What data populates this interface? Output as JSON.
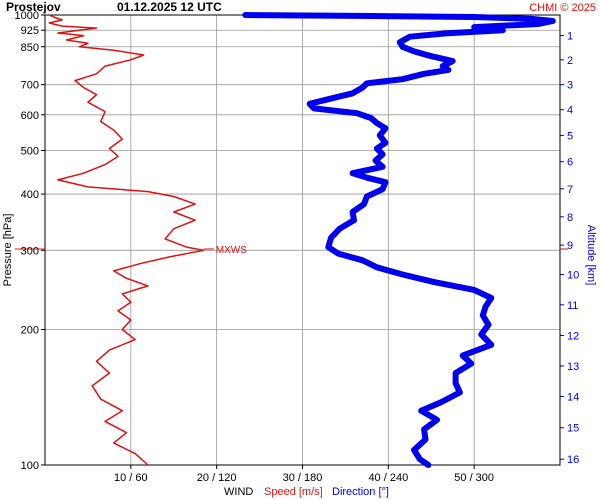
{
  "header": {
    "station": "Prostejov",
    "datetime": "01.12.2025 12 UTC",
    "copyright": "CHMI © 2025"
  },
  "colors": {
    "speed": "#dd1111",
    "direction": "#0000ee",
    "grid": "#999999",
    "axis": "#000000"
  },
  "chart_data": {
    "type": "line",
    "y_axis": {
      "label": "Pressure [hPa]",
      "scale": "log",
      "inverted": true,
      "range": [
        1000,
        100
      ],
      "ticks": [
        1000,
        925,
        850,
        700,
        600,
        500,
        400,
        300,
        200,
        100
      ],
      "tick_labels": [
        "1000",
        "925",
        "850",
        "700",
        "600",
        "500",
        "400",
        "300",
        "200",
        "100"
      ]
    },
    "y2_axis": {
      "label": "Altitude [km]",
      "ticks": [
        1,
        2,
        3,
        4,
        5,
        6,
        7,
        8,
        9,
        10,
        11,
        12,
        13,
        14,
        15,
        16
      ],
      "tick_labels": [
        "1",
        "2",
        "3",
        "4",
        "5",
        "6",
        "7",
        "8",
        "9",
        "10",
        "11",
        "12",
        "13",
        "14",
        "15",
        "16"
      ],
      "tick_pressures": [
        900,
        795,
        700,
        616,
        540,
        472,
        411,
        356,
        308,
        265,
        227,
        194,
        166,
        142,
        121,
        103
      ]
    },
    "x_axis": {
      "title": "WIND",
      "speed_label": "Speed [m/s]",
      "direction_label": "Direction [°]",
      "speed_range": [
        0,
        60
      ],
      "direction_range": [
        0,
        360
      ],
      "ticks": [
        {
          "speed": 10,
          "direction": 60,
          "label": "10 / 60"
        },
        {
          "speed": 20,
          "direction": 120,
          "label": "20 / 120"
        },
        {
          "speed": 30,
          "direction": 180,
          "label": "30 / 180"
        },
        {
          "speed": 40,
          "direction": 240,
          "label": "40 / 240"
        },
        {
          "speed": 50,
          "direction": 300,
          "label": "50 / 300"
        }
      ]
    },
    "max_wind": {
      "label": "MXWS",
      "pressure": 302,
      "speed": 18.5
    },
    "series": [
      {
        "name": "Speed [m/s]",
        "color": "#dd1111",
        "points": [
          {
            "p": 1000,
            "v": 0.5
          },
          {
            "p": 990,
            "v": 1.0
          },
          {
            "p": 975,
            "v": 2.0
          },
          {
            "p": 960,
            "v": 0.5
          },
          {
            "p": 945,
            "v": 2.0
          },
          {
            "p": 935,
            "v": 6.0
          },
          {
            "p": 925,
            "v": 4.0
          },
          {
            "p": 912,
            "v": 1.5
          },
          {
            "p": 900,
            "v": 4.5
          },
          {
            "p": 880,
            "v": 2.5
          },
          {
            "p": 865,
            "v": 5.0
          },
          {
            "p": 850,
            "v": 4.0
          },
          {
            "p": 835,
            "v": 8.0
          },
          {
            "p": 815,
            "v": 11.5
          },
          {
            "p": 795,
            "v": 10.0
          },
          {
            "p": 770,
            "v": 7.0
          },
          {
            "p": 740,
            "v": 6.0
          },
          {
            "p": 715,
            "v": 3.5
          },
          {
            "p": 690,
            "v": 4.5
          },
          {
            "p": 665,
            "v": 6.0
          },
          {
            "p": 640,
            "v": 5.0
          },
          {
            "p": 610,
            "v": 7.0
          },
          {
            "p": 580,
            "v": 6.5
          },
          {
            "p": 555,
            "v": 8.0
          },
          {
            "p": 530,
            "v": 9.0
          },
          {
            "p": 505,
            "v": 7.5
          },
          {
            "p": 485,
            "v": 8.5
          },
          {
            "p": 465,
            "v": 7.0
          },
          {
            "p": 445,
            "v": 4.5
          },
          {
            "p": 430,
            "v": 1.5
          },
          {
            "p": 415,
            "v": 5.0
          },
          {
            "p": 405,
            "v": 12.0
          },
          {
            "p": 395,
            "v": 15.0
          },
          {
            "p": 380,
            "v": 17.5
          },
          {
            "p": 365,
            "v": 15.0
          },
          {
            "p": 350,
            "v": 17.5
          },
          {
            "p": 335,
            "v": 15.0
          },
          {
            "p": 318,
            "v": 14.0
          },
          {
            "p": 305,
            "v": 16.5
          },
          {
            "p": 300,
            "v": 18.5
          },
          {
            "p": 290,
            "v": 14.5
          },
          {
            "p": 280,
            "v": 11.0
          },
          {
            "p": 270,
            "v": 8.0
          },
          {
            "p": 260,
            "v": 9.5
          },
          {
            "p": 250,
            "v": 12.0
          },
          {
            "p": 240,
            "v": 9.0
          },
          {
            "p": 230,
            "v": 10.0
          },
          {
            "p": 220,
            "v": 8.5
          },
          {
            "p": 210,
            "v": 10.0
          },
          {
            "p": 200,
            "v": 9.0
          },
          {
            "p": 190,
            "v": 10.5
          },
          {
            "p": 180,
            "v": 7.5
          },
          {
            "p": 170,
            "v": 6.0
          },
          {
            "p": 160,
            "v": 7.5
          },
          {
            "p": 150,
            "v": 5.5
          },
          {
            "p": 140,
            "v": 6.5
          },
          {
            "p": 132,
            "v": 9.0
          },
          {
            "p": 125,
            "v": 7.0
          },
          {
            "p": 118,
            "v": 9.5
          },
          {
            "p": 112,
            "v": 8.0
          },
          {
            "p": 106,
            "v": 10.5
          },
          {
            "p": 100,
            "v": 12.0
          }
        ]
      },
      {
        "name": "Direction [°]",
        "color": "#0000ee",
        "points": [
          {
            "p": 1000,
            "d": 140
          },
          {
            "p": 995,
            "d": 230
          },
          {
            "p": 990,
            "d": 300
          },
          {
            "p": 980,
            "d": 340
          },
          {
            "p": 970,
            "d": 355
          },
          {
            "p": 955,
            "d": 345
          },
          {
            "p": 940,
            "d": 300
          },
          {
            "p": 925,
            "d": 320
          },
          {
            "p": 910,
            "d": 280
          },
          {
            "p": 895,
            "d": 255
          },
          {
            "p": 870,
            "d": 248
          },
          {
            "p": 850,
            "d": 250
          },
          {
            "p": 830,
            "d": 258
          },
          {
            "p": 810,
            "d": 270
          },
          {
            "p": 790,
            "d": 285
          },
          {
            "p": 770,
            "d": 278
          },
          {
            "p": 755,
            "d": 282
          },
          {
            "p": 740,
            "d": 265
          },
          {
            "p": 720,
            "d": 250
          },
          {
            "p": 705,
            "d": 225
          },
          {
            "p": 690,
            "d": 222
          },
          {
            "p": 670,
            "d": 215
          },
          {
            "p": 650,
            "d": 198
          },
          {
            "p": 635,
            "d": 185
          },
          {
            "p": 620,
            "d": 188
          },
          {
            "p": 605,
            "d": 218
          },
          {
            "p": 590,
            "d": 228
          },
          {
            "p": 575,
            "d": 232
          },
          {
            "p": 560,
            "d": 238
          },
          {
            "p": 540,
            "d": 234
          },
          {
            "p": 520,
            "d": 238
          },
          {
            "p": 505,
            "d": 232
          },
          {
            "p": 490,
            "d": 236
          },
          {
            "p": 475,
            "d": 231
          },
          {
            "p": 460,
            "d": 236
          },
          {
            "p": 445,
            "d": 215
          },
          {
            "p": 435,
            "d": 225
          },
          {
            "p": 425,
            "d": 238
          },
          {
            "p": 410,
            "d": 236
          },
          {
            "p": 395,
            "d": 225
          },
          {
            "p": 380,
            "d": 223
          },
          {
            "p": 365,
            "d": 215
          },
          {
            "p": 350,
            "d": 216
          },
          {
            "p": 335,
            "d": 206
          },
          {
            "p": 320,
            "d": 200
          },
          {
            "p": 305,
            "d": 198
          },
          {
            "p": 295,
            "d": 205
          },
          {
            "p": 285,
            "d": 222
          },
          {
            "p": 275,
            "d": 232
          },
          {
            "p": 265,
            "d": 250
          },
          {
            "p": 255,
            "d": 272
          },
          {
            "p": 245,
            "d": 300
          },
          {
            "p": 235,
            "d": 312
          },
          {
            "p": 225,
            "d": 308
          },
          {
            "p": 215,
            "d": 306
          },
          {
            "p": 205,
            "d": 310
          },
          {
            "p": 195,
            "d": 305
          },
          {
            "p": 185,
            "d": 312
          },
          {
            "p": 175,
            "d": 292
          },
          {
            "p": 168,
            "d": 298
          },
          {
            "p": 160,
            "d": 287
          },
          {
            "p": 152,
            "d": 287
          },
          {
            "p": 145,
            "d": 290
          },
          {
            "p": 138,
            "d": 277
          },
          {
            "p": 132,
            "d": 263
          },
          {
            "p": 126,
            "d": 274
          },
          {
            "p": 120,
            "d": 265
          },
          {
            "p": 114,
            "d": 266
          },
          {
            "p": 108,
            "d": 258
          },
          {
            "p": 103,
            "d": 262
          },
          {
            "p": 100,
            "d": 268
          }
        ]
      }
    ]
  }
}
